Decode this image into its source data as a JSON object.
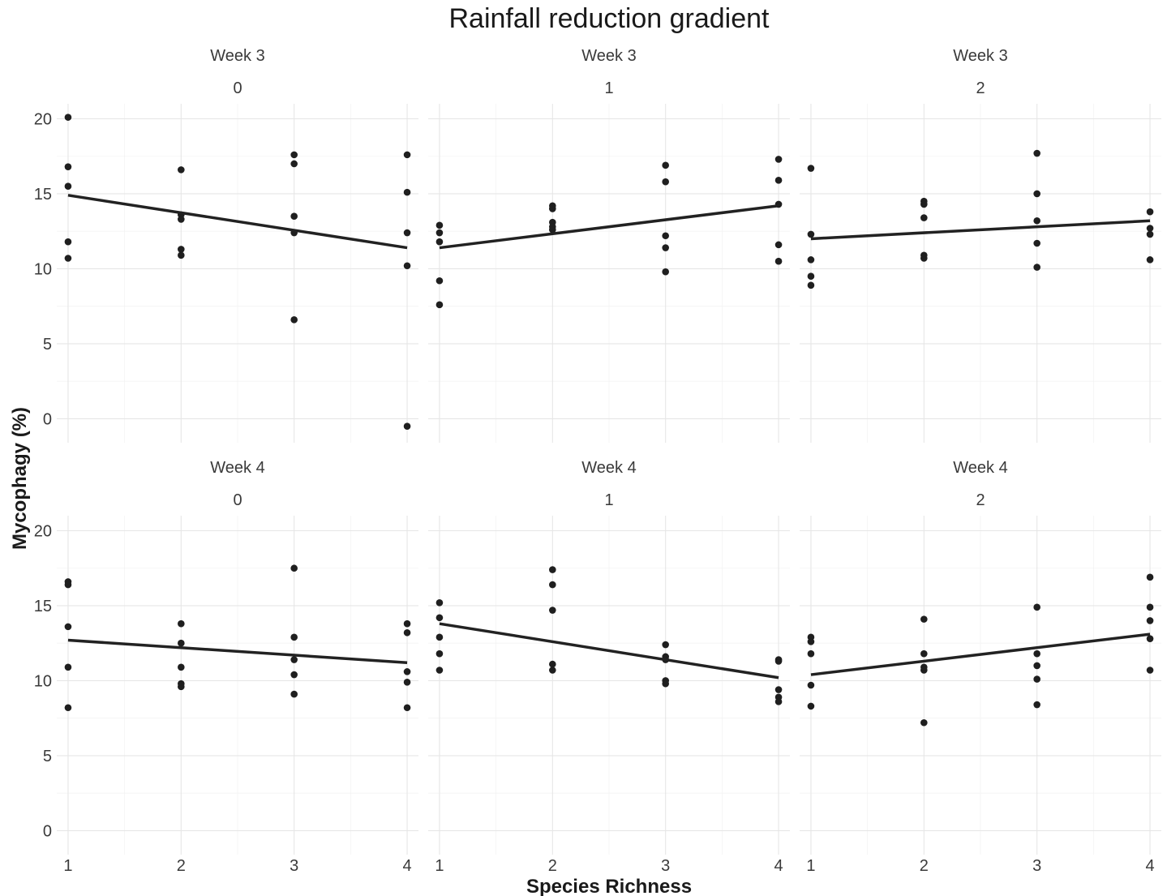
{
  "chart_data": {
    "type": "scatter",
    "title": "Rainfall reduction gradient",
    "xlabel": "Species Richness",
    "ylabel": "Mycophagy (%)",
    "xlim": [
      0.9,
      4.1
    ],
    "ylim": [
      -1.6,
      21
    ],
    "x_ticks": [
      "1",
      "2",
      "3",
      "4"
    ],
    "y_ticks": [
      "0",
      "5",
      "10",
      "15",
      "20"
    ],
    "grid": true,
    "panels": [
      {
        "week": "Week 3",
        "rainfall": "0",
        "points": [
          [
            1,
            20.1
          ],
          [
            1,
            16.8
          ],
          [
            1,
            15.5
          ],
          [
            1,
            11.8
          ],
          [
            1,
            10.7
          ],
          [
            2,
            16.6
          ],
          [
            2,
            13.6
          ],
          [
            2,
            13.3
          ],
          [
            2,
            11.3
          ],
          [
            2,
            10.9
          ],
          [
            3,
            17.6
          ],
          [
            3,
            17.0
          ],
          [
            3,
            13.5
          ],
          [
            3,
            12.4
          ],
          [
            3,
            6.6
          ],
          [
            4,
            17.6
          ],
          [
            4,
            15.1
          ],
          [
            4,
            12.4
          ],
          [
            4,
            10.2
          ],
          [
            4,
            -0.5
          ]
        ],
        "fit": [
          [
            1,
            14.9
          ],
          [
            4,
            11.4
          ]
        ]
      },
      {
        "week": "Week 3",
        "rainfall": "1",
        "points": [
          [
            1,
            12.9
          ],
          [
            1,
            12.4
          ],
          [
            1,
            11.8
          ],
          [
            1,
            9.2
          ],
          [
            1,
            7.6
          ],
          [
            2,
            14.2
          ],
          [
            2,
            14.0
          ],
          [
            2,
            13.1
          ],
          [
            2,
            12.8
          ],
          [
            2,
            12.6
          ],
          [
            3,
            16.9
          ],
          [
            3,
            15.8
          ],
          [
            3,
            12.2
          ],
          [
            3,
            11.4
          ],
          [
            3,
            9.8
          ],
          [
            4,
            17.3
          ],
          [
            4,
            15.9
          ],
          [
            4,
            14.3
          ],
          [
            4,
            11.6
          ],
          [
            4,
            10.5
          ]
        ],
        "fit": [
          [
            1,
            11.4
          ],
          [
            4,
            14.2
          ]
        ]
      },
      {
        "week": "Week 3",
        "rainfall": "2",
        "points": [
          [
            1,
            16.7
          ],
          [
            1,
            12.3
          ],
          [
            1,
            10.6
          ],
          [
            1,
            9.5
          ],
          [
            1,
            8.9
          ],
          [
            2,
            14.5
          ],
          [
            2,
            14.3
          ],
          [
            2,
            13.4
          ],
          [
            2,
            10.9
          ],
          [
            2,
            10.7
          ],
          [
            3,
            17.7
          ],
          [
            3,
            15.0
          ],
          [
            3,
            13.2
          ],
          [
            3,
            11.7
          ],
          [
            3,
            10.1
          ],
          [
            4,
            13.8
          ],
          [
            4,
            12.7
          ],
          [
            4,
            12.3
          ],
          [
            4,
            10.6
          ]
        ],
        "fit": [
          [
            1,
            12.0
          ],
          [
            4,
            13.2
          ]
        ]
      },
      {
        "week": "Week 4",
        "rainfall": "0",
        "points": [
          [
            1,
            16.6
          ],
          [
            1,
            16.4
          ],
          [
            1,
            13.6
          ],
          [
            1,
            10.9
          ],
          [
            1,
            8.2
          ],
          [
            2,
            13.8
          ],
          [
            2,
            12.5
          ],
          [
            2,
            10.9
          ],
          [
            2,
            9.8
          ],
          [
            2,
            9.6
          ],
          [
            3,
            17.5
          ],
          [
            3,
            12.9
          ],
          [
            3,
            11.4
          ],
          [
            3,
            10.4
          ],
          [
            3,
            9.1
          ],
          [
            4,
            13.8
          ],
          [
            4,
            13.2
          ],
          [
            4,
            10.6
          ],
          [
            4,
            9.9
          ],
          [
            4,
            8.2
          ]
        ],
        "fit": [
          [
            1,
            12.7
          ],
          [
            4,
            11.2
          ]
        ]
      },
      {
        "week": "Week 4",
        "rainfall": "1",
        "points": [
          [
            1,
            15.2
          ],
          [
            1,
            14.2
          ],
          [
            1,
            12.9
          ],
          [
            1,
            11.8
          ],
          [
            1,
            10.7
          ],
          [
            2,
            17.4
          ],
          [
            2,
            16.4
          ],
          [
            2,
            14.7
          ],
          [
            2,
            11.1
          ],
          [
            2,
            10.7
          ],
          [
            3,
            12.4
          ],
          [
            3,
            11.6
          ],
          [
            3,
            11.4
          ],
          [
            3,
            10.0
          ],
          [
            3,
            9.8
          ],
          [
            4,
            11.4
          ],
          [
            4,
            11.3
          ],
          [
            4,
            9.4
          ],
          [
            4,
            8.9
          ],
          [
            4,
            8.6
          ]
        ],
        "fit": [
          [
            1,
            13.8
          ],
          [
            4,
            10.2
          ]
        ]
      },
      {
        "week": "Week 4",
        "rainfall": "2",
        "points": [
          [
            1,
            12.9
          ],
          [
            1,
            12.6
          ],
          [
            1,
            11.8
          ],
          [
            1,
            9.7
          ],
          [
            1,
            8.3
          ],
          [
            2,
            14.1
          ],
          [
            2,
            11.8
          ],
          [
            2,
            10.9
          ],
          [
            2,
            10.7
          ],
          [
            2,
            7.2
          ],
          [
            3,
            14.9
          ],
          [
            3,
            11.8
          ],
          [
            3,
            11.0
          ],
          [
            3,
            10.1
          ],
          [
            3,
            8.4
          ],
          [
            4,
            16.9
          ],
          [
            4,
            14.9
          ],
          [
            4,
            14.0
          ],
          [
            4,
            12.8
          ],
          [
            4,
            10.7
          ]
        ],
        "fit": [
          [
            1,
            10.4
          ],
          [
            4,
            13.1
          ]
        ]
      }
    ]
  }
}
